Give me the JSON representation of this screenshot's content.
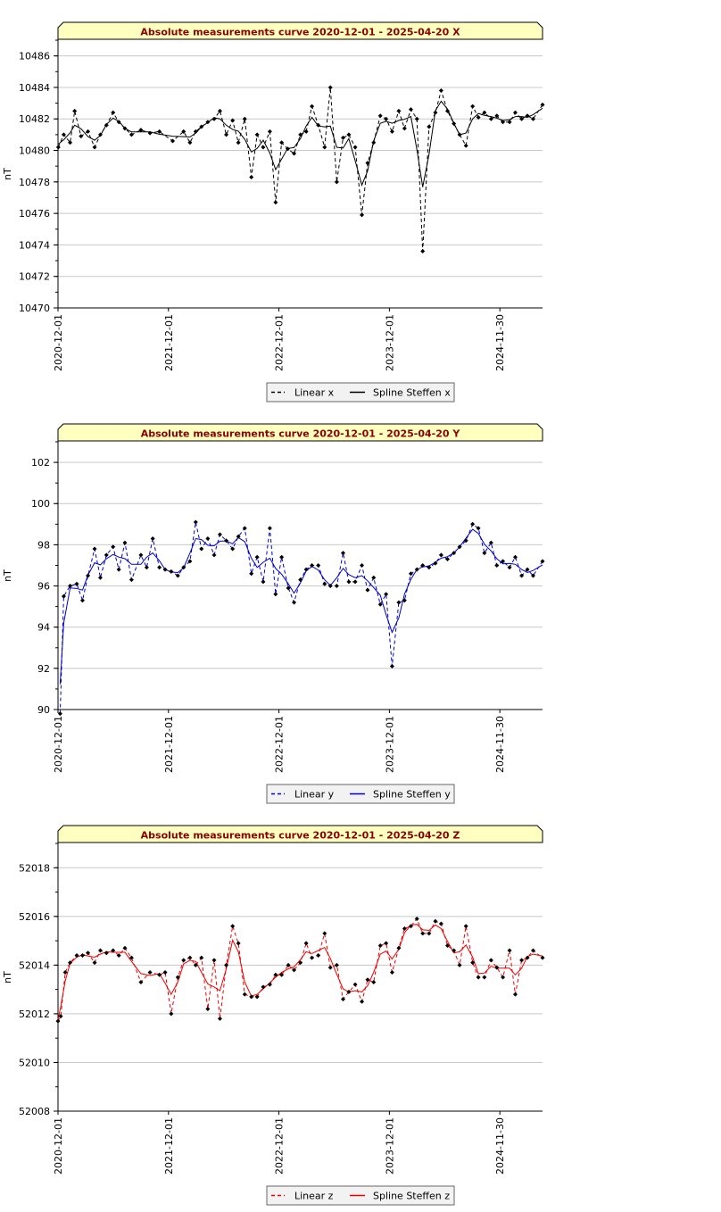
{
  "chart_data": [
    {
      "type": "line",
      "title": "Absolute measurements curve 2020-12-01 - 2025-04-20 X",
      "ylabel": "nT",
      "xlabel": "",
      "ylim": [
        10470,
        10487
      ],
      "yticks": [
        10470,
        10472,
        10474,
        10476,
        10478,
        10480,
        10482,
        10484,
        10486
      ],
      "xlim": [
        "2020-12-01",
        "2025-04-20"
      ],
      "xtick_labels": [
        "2020-12-01",
        "2021-12-01",
        "2022-12-01",
        "2023-12-01",
        "2024-11-30"
      ],
      "grid": true,
      "legend_position": "bottom-center",
      "color": "#000000",
      "series": [
        {
          "name": "Linear x",
          "style": "dashed"
        },
        {
          "name": "Spline Steffen x",
          "style": "solid"
        }
      ],
      "x": [
        "2020-12-02",
        "2020-12-20",
        "2021-01-10",
        "2021-01-25",
        "2021-02-15",
        "2021-03-10",
        "2021-04-01",
        "2021-04-20",
        "2021-05-10",
        "2021-06-01",
        "2021-06-20",
        "2021-07-10",
        "2021-08-01",
        "2021-09-01",
        "2021-10-01",
        "2021-11-01",
        "2021-12-15",
        "2022-01-20",
        "2022-02-10",
        "2022-03-01",
        "2022-03-20",
        "2022-04-10",
        "2022-05-01",
        "2022-05-20",
        "2022-06-10",
        "2022-07-01",
        "2022-07-20",
        "2022-08-10",
        "2022-09-01",
        "2022-09-20",
        "2022-10-10",
        "2022-11-01",
        "2022-11-20",
        "2022-12-10",
        "2022-12-30",
        "2023-01-20",
        "2023-02-10",
        "2023-03-01",
        "2023-03-20",
        "2023-04-10",
        "2023-05-01",
        "2023-05-20",
        "2023-06-10",
        "2023-07-01",
        "2023-07-20",
        "2023-08-10",
        "2023-09-01",
        "2023-09-20",
        "2023-10-10",
        "2023-11-01",
        "2023-11-20",
        "2023-12-10",
        "2024-01-01",
        "2024-01-20",
        "2024-02-10",
        "2024-03-01",
        "2024-03-20",
        "2024-04-10",
        "2024-05-01",
        "2024-05-20",
        "2024-06-10",
        "2024-07-01",
        "2024-07-20",
        "2024-08-10",
        "2024-09-01",
        "2024-09-20",
        "2024-10-10",
        "2024-11-01",
        "2024-11-20",
        "2024-12-10",
        "2025-01-01",
        "2025-01-20",
        "2025-02-10",
        "2025-03-01",
        "2025-03-20",
        "2025-04-20"
      ],
      "values": [
        10480.2,
        10481.0,
        10480.5,
        10482.5,
        10480.9,
        10481.2,
        10480.2,
        10481.0,
        10481.6,
        10482.4,
        10481.8,
        10481.4,
        10481.0,
        10481.3,
        10481.1,
        10481.2,
        10480.6,
        10481.2,
        10480.5,
        10481.2,
        10481.5,
        10481.8,
        10482.0,
        10482.5,
        10481.0,
        10481.9,
        10480.5,
        10482.0,
        10478.3,
        10481.0,
        10480.2,
        10481.2,
        10476.7,
        10480.5,
        10480.1,
        10479.8,
        10481.0,
        10481.2,
        10482.8,
        10481.6,
        10480.2,
        10484.0,
        10478.0,
        10480.8,
        10481.0,
        10480.2,
        10475.9,
        10479.2,
        10480.5,
        10482.2,
        10482.0,
        10481.2,
        10482.5,
        10481.4,
        10482.6,
        10482.0,
        10473.6,
        10481.5,
        10482.4,
        10483.8,
        10482.5,
        10481.7,
        10481.0,
        10480.3,
        10482.8,
        10482.1,
        10482.4,
        10482.0,
        10482.2,
        10481.8,
        10481.8,
        10482.4,
        10482.0,
        10482.2,
        10482.0,
        10482.9
      ]
    },
    {
      "type": "line",
      "title": "Absolute measurements curve 2020-12-01 - 2025-04-20 Y",
      "ylabel": "nT",
      "xlabel": "",
      "ylim": [
        90,
        103
      ],
      "yticks": [
        90,
        92,
        94,
        96,
        98,
        100,
        102
      ],
      "xlim": [
        "2020-12-01",
        "2025-04-20"
      ],
      "xtick_labels": [
        "2020-12-01",
        "2021-12-01",
        "2022-12-01",
        "2023-12-01",
        "2024-11-30"
      ],
      "grid": true,
      "legend_position": "bottom-center",
      "color": "#0000cc",
      "series": [
        {
          "name": "Linear y",
          "style": "dashed"
        },
        {
          "name": "Spline Steffen y",
          "style": "solid"
        }
      ],
      "x": [
        "2020-12-08",
        "2020-12-20",
        "2021-01-10",
        "2021-02-01",
        "2021-02-20",
        "2021-03-10",
        "2021-04-01",
        "2021-04-20",
        "2021-05-10",
        "2021-06-01",
        "2021-06-20",
        "2021-07-10",
        "2021-08-01",
        "2021-09-01",
        "2021-09-20",
        "2021-10-10",
        "2021-11-01",
        "2021-11-20",
        "2021-12-10",
        "2022-01-01",
        "2022-01-20",
        "2022-02-10",
        "2022-03-01",
        "2022-03-20",
        "2022-04-10",
        "2022-05-01",
        "2022-05-20",
        "2022-06-10",
        "2022-07-01",
        "2022-07-20",
        "2022-08-10",
        "2022-09-01",
        "2022-09-20",
        "2022-10-10",
        "2022-11-01",
        "2022-11-20",
        "2022-12-10",
        "2023-01-01",
        "2023-01-20",
        "2023-02-10",
        "2023-03-01",
        "2023-03-20",
        "2023-04-10",
        "2023-05-01",
        "2023-05-20",
        "2023-06-10",
        "2023-07-01",
        "2023-07-20",
        "2023-08-10",
        "2023-09-01",
        "2023-09-20",
        "2023-10-10",
        "2023-11-01",
        "2023-11-20",
        "2023-12-10",
        "2024-01-01",
        "2024-01-20",
        "2024-02-10",
        "2024-03-01",
        "2024-03-20",
        "2024-04-10",
        "2024-05-01",
        "2024-05-20",
        "2024-06-10",
        "2024-07-01",
        "2024-07-20",
        "2024-08-10",
        "2024-09-01",
        "2024-09-20",
        "2024-10-10",
        "2024-11-01",
        "2024-11-20",
        "2024-12-10",
        "2025-01-01",
        "2025-01-20",
        "2025-02-10",
        "2025-03-01",
        "2025-03-20",
        "2025-04-20"
      ],
      "values": [
        89.8,
        95.5,
        96.0,
        96.1,
        95.3,
        96.5,
        97.8,
        96.4,
        97.5,
        97.9,
        96.8,
        98.1,
        96.3,
        97.5,
        96.9,
        98.3,
        96.9,
        96.8,
        96.7,
        96.5,
        96.9,
        97.2,
        99.1,
        97.8,
        98.3,
        97.5,
        98.5,
        98.2,
        97.8,
        98.4,
        98.8,
        96.6,
        97.4,
        96.2,
        98.8,
        95.6,
        97.4,
        95.9,
        95.2,
        96.3,
        96.8,
        97.0,
        97.0,
        96.1,
        96.0,
        96.0,
        97.6,
        96.2,
        96.2,
        97.0,
        95.8,
        96.4,
        95.1,
        95.6,
        92.1,
        95.2,
        95.3,
        96.6,
        96.8,
        97.0,
        96.9,
        97.1,
        97.5,
        97.3,
        97.6,
        97.9,
        98.2,
        99.0,
        98.8,
        97.6,
        98.1,
        97.0,
        97.2,
        96.9,
        97.4,
        96.5,
        96.8,
        96.5,
        97.2
      ]
    },
    {
      "type": "line",
      "title": "Absolute measurements curve 2020-12-01 - 2025-04-20 Z",
      "ylabel": "nT",
      "xlabel": "",
      "ylim": [
        52008,
        52019
      ],
      "yticks": [
        52008,
        52010,
        52012,
        52014,
        52016,
        52018
      ],
      "xlim": [
        "2020-12-01",
        "2025-04-20"
      ],
      "xtick_labels": [
        "2020-12-01",
        "2021-12-01",
        "2022-12-01",
        "2023-12-01",
        "2024-11-30"
      ],
      "grid": true,
      "legend_position": "bottom-center",
      "color": "#ee0000",
      "series": [
        {
          "name": "Linear z",
          "style": "dashed"
        },
        {
          "name": "Spline Steffen z",
          "style": "solid"
        }
      ],
      "x": [
        "2020-12-01",
        "2020-12-10",
        "2020-12-25",
        "2021-01-10",
        "2021-02-01",
        "2021-02-20",
        "2021-03-10",
        "2021-04-01",
        "2021-04-20",
        "2021-05-10",
        "2021-06-01",
        "2021-06-20",
        "2021-07-10",
        "2021-08-01",
        "2021-09-01",
        "2021-10-01",
        "2021-11-01",
        "2021-11-20",
        "2021-12-10",
        "2022-01-01",
        "2022-01-20",
        "2022-02-10",
        "2022-03-01",
        "2022-03-20",
        "2022-04-10",
        "2022-05-01",
        "2022-05-20",
        "2022-06-10",
        "2022-07-01",
        "2022-07-20",
        "2022-08-10",
        "2022-09-01",
        "2022-09-20",
        "2022-10-10",
        "2022-11-01",
        "2022-11-20",
        "2022-12-10",
        "2023-01-01",
        "2023-01-20",
        "2023-02-10",
        "2023-03-01",
        "2023-03-20",
        "2023-04-10",
        "2023-05-01",
        "2023-05-20",
        "2023-06-10",
        "2023-07-01",
        "2023-07-20",
        "2023-08-10",
        "2023-09-01",
        "2023-09-20",
        "2023-10-10",
        "2023-11-01",
        "2023-11-20",
        "2023-12-10",
        "2024-01-01",
        "2024-01-20",
        "2024-02-10",
        "2024-03-01",
        "2024-03-20",
        "2024-04-10",
        "2024-05-01",
        "2024-05-20",
        "2024-06-10",
        "2024-07-01",
        "2024-07-20",
        "2024-08-10",
        "2024-09-01",
        "2024-09-20",
        "2024-10-10",
        "2024-11-01",
        "2024-11-20",
        "2024-12-10",
        "2025-01-01",
        "2025-01-20",
        "2025-02-10",
        "2025-03-01",
        "2025-03-20",
        "2025-04-20"
      ],
      "values": [
        52011.7,
        52011.9,
        52013.7,
        52014.1,
        52014.4,
        52014.4,
        52014.5,
        52014.1,
        52014.6,
        52014.5,
        52014.6,
        52014.4,
        52014.7,
        52014.3,
        52013.3,
        52013.7,
        52013.6,
        52013.7,
        52012.0,
        52013.5,
        52014.2,
        52014.3,
        52014.0,
        52014.3,
        52012.2,
        52014.2,
        52011.8,
        52014.0,
        52015.6,
        52014.9,
        52012.8,
        52012.7,
        52012.7,
        52013.1,
        52013.2,
        52013.6,
        52013.6,
        52014.0,
        52013.8,
        52014.1,
        52014.9,
        52014.3,
        52014.4,
        52015.3,
        52013.9,
        52014.0,
        52012.6,
        52012.9,
        52013.2,
        52012.5,
        52013.4,
        52013.3,
        52014.8,
        52014.9,
        52013.7,
        52014.7,
        52015.5,
        52015.6,
        52015.9,
        52015.3,
        52015.3,
        52015.8,
        52015.7,
        52014.8,
        52014.6,
        52014.0,
        52015.6,
        52014.1,
        52013.5,
        52013.5,
        52014.2,
        52013.9,
        52013.5,
        52014.6,
        52012.8,
        52014.2,
        52014.3,
        52014.6,
        52014.3
      ]
    }
  ]
}
